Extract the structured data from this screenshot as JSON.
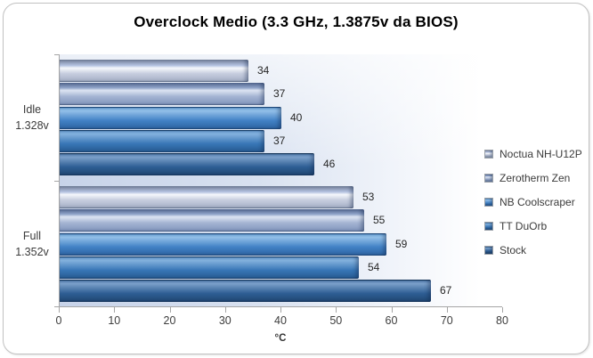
{
  "chart_data": {
    "type": "bar",
    "orientation": "horizontal",
    "title": "Overclock Medio (3.3 GHz, 1.3875v da BIOS)",
    "xlabel": "°C",
    "xlim": [
      0,
      80
    ],
    "x_ticks": [
      0,
      10,
      20,
      30,
      40,
      50,
      60,
      70,
      80
    ],
    "grid": false,
    "legend_position": "right",
    "data_labels": true,
    "categories": [
      {
        "line1": "Idle",
        "line2": "1.328v"
      },
      {
        "line1": "Full",
        "line2": "1.352v"
      }
    ],
    "series": [
      {
        "name": "Noctua NH-U12P",
        "values": [
          34,
          53
        ],
        "colors": {
          "edge": "#7d89a3",
          "upper": "#b3c1e0",
          "hi": "#f6f8fc",
          "mid": "#c7cedf",
          "dark": "#a3adc4",
          "hi_pos": 38
        }
      },
      {
        "name": "Zerotherm Zen",
        "values": [
          37,
          55
        ],
        "colors": {
          "edge": "#5d7199",
          "upper": "#8ea2c8",
          "hi": "#dce4f2",
          "mid": "#a3b3d2",
          "dark": "#8094bb",
          "hi_pos": 34
        }
      },
      {
        "name": "NB Coolscraper",
        "values": [
          40,
          59
        ],
        "colors": {
          "edge": "#1e4c80",
          "upper": "#76acdd",
          "hi": "#92bfe8",
          "mid": "#4181c5",
          "dark": "#2d63a0",
          "hi_pos": 18
        }
      },
      {
        "name": "TT DuOrb",
        "values": [
          37,
          54
        ],
        "colors": {
          "edge": "#1a456f",
          "upper": "#6da0d3",
          "hi": "#83b1dd",
          "mid": "#3876b6",
          "dark": "#265990",
          "hi_pos": 18
        }
      },
      {
        "name": "Stock",
        "values": [
          46,
          67
        ],
        "colors": {
          "edge": "#16385d",
          "upper": "#5c85b5",
          "hi": "#7ba0ca",
          "mid": "#2e5e94",
          "dark": "#1f4671",
          "hi_pos": 18
        }
      }
    ]
  }
}
